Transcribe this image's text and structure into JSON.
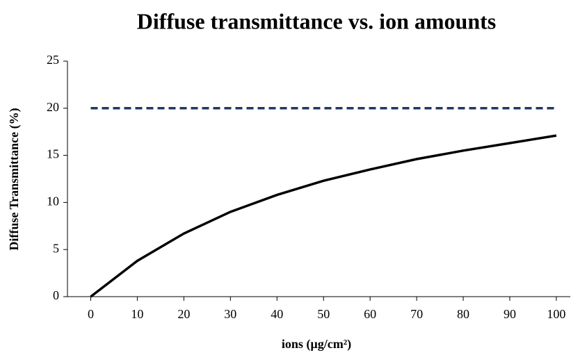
{
  "chart_data": {
    "type": "line",
    "title": "Diffuse transmittance vs. ion amounts",
    "x_label": "ions (µg/cm²)",
    "y_label": "Diffuse Transmittance (%)",
    "x": [
      0,
      10,
      20,
      30,
      40,
      50,
      60,
      70,
      80,
      90,
      100
    ],
    "series": [
      {
        "color": "#000000",
        "dash": false,
        "values": [
          0,
          3.8,
          6.7,
          9.0,
          10.8,
          12.3,
          13.5,
          14.6,
          15.5,
          16.3,
          17.1
        ]
      },
      {
        "color": "#1f3864",
        "dash": true,
        "values": [
          20,
          20,
          20,
          20,
          20,
          20,
          20,
          20,
          20,
          20,
          20
        ]
      }
    ],
    "xlim": [
      -5,
      103
    ],
    "xticks": [
      0,
      10,
      20,
      30,
      40,
      50,
      60,
      70,
      80,
      90,
      100
    ],
    "ylim": [
      0,
      25
    ],
    "yticks": [
      0,
      5,
      10,
      15,
      20,
      25
    ],
    "grid": false
  }
}
